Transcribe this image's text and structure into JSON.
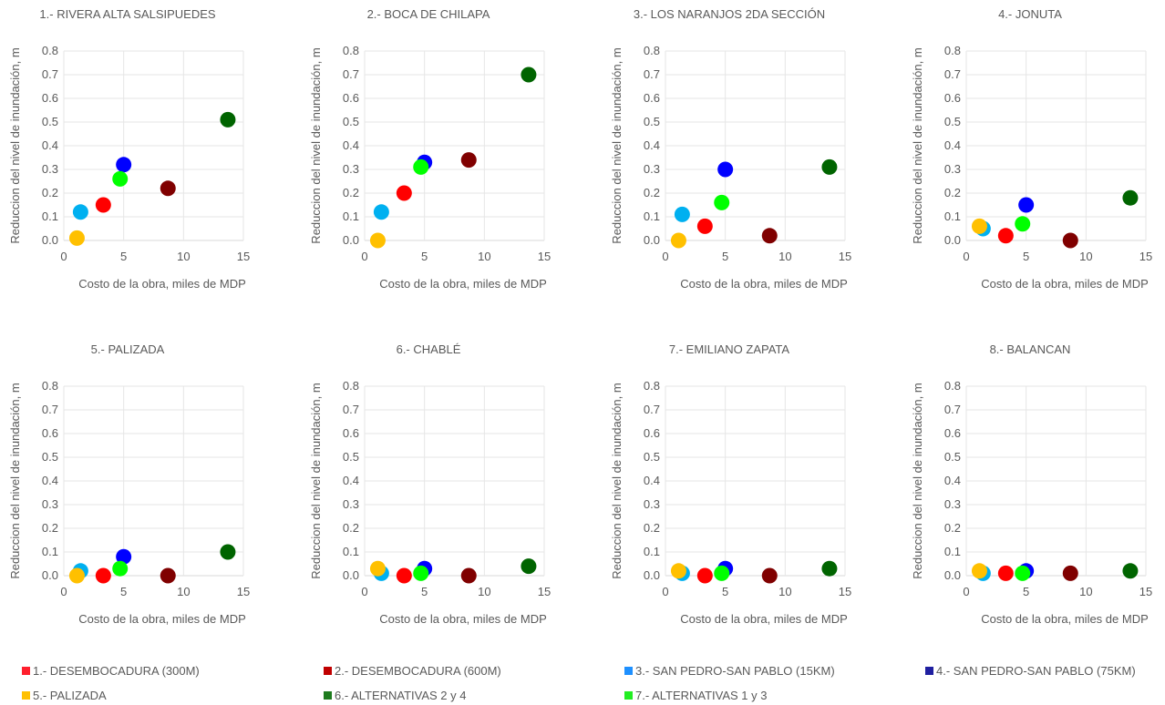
{
  "legend": [
    {
      "label": "1.- DESEMBOCADURA (300M)",
      "color": "#ff1f2d"
    },
    {
      "label": "2.- DESEMBOCADURA (600M)",
      "color": "#c00000"
    },
    {
      "label": "3.- SAN PEDRO-SAN PABLO (15KM)",
      "color": "#1e90ff"
    },
    {
      "label": "4.- SAN PEDRO-SAN PABLO (75KM)",
      "color": "#1f1fa0"
    },
    {
      "label": "5.- PALIZADA",
      "color": "#ffc000"
    },
    {
      "label": "6.- ALTERNATIVAS 2 y 4",
      "color": "#1e7b1e"
    },
    {
      "label": "7.- ALTERNATIVAS 1 y 3",
      "color": "#22ee22"
    }
  ],
  "chart_data": [
    {
      "type": "scatter",
      "title": "1.- RIVERA ALTA SALSIPUEDES",
      "xlabel": "Costo de la obra, miles de MDP",
      "ylabel": "Reduccion del nivel de inundación, m",
      "xlim": [
        0,
        15
      ],
      "ylim": [
        0,
        0.8
      ],
      "xticks": [
        "0",
        "5",
        "10",
        "15"
      ],
      "yticks": [
        "0.0",
        "0.1",
        "0.2",
        "0.3",
        "0.4",
        "0.5",
        "0.6",
        "0.7",
        "0.8"
      ],
      "points": [
        {
          "x": 1.1,
          "y": 0.01,
          "color": "#ffc000"
        },
        {
          "x": 1.4,
          "y": 0.12,
          "color": "#00b0f0"
        },
        {
          "x": 3.3,
          "y": 0.15,
          "color": "#ff0000"
        },
        {
          "x": 5.0,
          "y": 0.32,
          "color": "#0000ff"
        },
        {
          "x": 4.7,
          "y": 0.26,
          "color": "#00ff00"
        },
        {
          "x": 8.7,
          "y": 0.22,
          "color": "#800000"
        },
        {
          "x": 13.7,
          "y": 0.51,
          "color": "#006400"
        }
      ]
    },
    {
      "type": "scatter",
      "title": "2.- BOCA DE CHILAPA",
      "xlabel": "Costo de la obra, miles de MDP",
      "ylabel": "Reduccion del nivel de inundación, m",
      "xlim": [
        0,
        15
      ],
      "ylim": [
        0,
        0.8
      ],
      "xticks": [
        "0",
        "5",
        "10",
        "15"
      ],
      "yticks": [
        "0.0",
        "0.1",
        "0.2",
        "0.3",
        "0.4",
        "0.5",
        "0.6",
        "0.7",
        "0.8"
      ],
      "points": [
        {
          "x": 1.1,
          "y": 0.0,
          "color": "#ffc000"
        },
        {
          "x": 1.4,
          "y": 0.12,
          "color": "#00b0f0"
        },
        {
          "x": 3.3,
          "y": 0.2,
          "color": "#ff0000"
        },
        {
          "x": 5.0,
          "y": 0.33,
          "color": "#0000ff"
        },
        {
          "x": 4.7,
          "y": 0.31,
          "color": "#00ff00"
        },
        {
          "x": 8.7,
          "y": 0.34,
          "color": "#800000"
        },
        {
          "x": 13.7,
          "y": 0.7,
          "color": "#006400"
        }
      ]
    },
    {
      "type": "scatter",
      "title": "3.- LOS NARANJOS 2DA SECCIÓN",
      "xlabel": "Costo de la obra, miles de MDP",
      "ylabel": "Reduccion del nivel de inundación, m",
      "xlim": [
        0,
        15
      ],
      "ylim": [
        0,
        0.8
      ],
      "xticks": [
        "0",
        "5",
        "10",
        "15"
      ],
      "yticks": [
        "0.0",
        "0.1",
        "0.2",
        "0.3",
        "0.4",
        "0.5",
        "0.6",
        "0.7",
        "0.8"
      ],
      "points": [
        {
          "x": 1.1,
          "y": 0.0,
          "color": "#ffc000"
        },
        {
          "x": 1.4,
          "y": 0.11,
          "color": "#00b0f0"
        },
        {
          "x": 3.3,
          "y": 0.06,
          "color": "#ff0000"
        },
        {
          "x": 5.0,
          "y": 0.3,
          "color": "#0000ff"
        },
        {
          "x": 4.7,
          "y": 0.16,
          "color": "#00ff00"
        },
        {
          "x": 8.7,
          "y": 0.02,
          "color": "#800000"
        },
        {
          "x": 13.7,
          "y": 0.31,
          "color": "#006400"
        }
      ]
    },
    {
      "type": "scatter",
      "title": "4.- JONUTA",
      "xlabel": "Costo de la obra, miles de MDP",
      "ylabel": "Reduccion del nivel de inundación, m",
      "xlim": [
        0,
        15
      ],
      "ylim": [
        0,
        0.8
      ],
      "xticks": [
        "0",
        "5",
        "10",
        "15"
      ],
      "yticks": [
        "0.0",
        "0.1",
        "0.2",
        "0.3",
        "0.4",
        "0.5",
        "0.6",
        "0.7",
        "0.8"
      ],
      "points": [
        {
          "x": 1.4,
          "y": 0.05,
          "color": "#00b0f0"
        },
        {
          "x": 1.1,
          "y": 0.06,
          "color": "#ffc000"
        },
        {
          "x": 3.3,
          "y": 0.02,
          "color": "#ff0000"
        },
        {
          "x": 5.0,
          "y": 0.15,
          "color": "#0000ff"
        },
        {
          "x": 4.7,
          "y": 0.07,
          "color": "#00ff00"
        },
        {
          "x": 8.7,
          "y": 0.0,
          "color": "#800000"
        },
        {
          "x": 13.7,
          "y": 0.18,
          "color": "#006400"
        }
      ]
    },
    {
      "type": "scatter",
      "title": "5.- PALIZADA",
      "xlabel": "Costo de la obra, miles de MDP",
      "ylabel": "Reduccion del nivel de inundación, m",
      "xlim": [
        0,
        15
      ],
      "ylim": [
        0,
        0.8
      ],
      "xticks": [
        "0",
        "5",
        "10",
        "15"
      ],
      "yticks": [
        "0.0",
        "0.1",
        "0.2",
        "0.3",
        "0.4",
        "0.5",
        "0.6",
        "0.7",
        "0.8"
      ],
      "points": [
        {
          "x": 1.4,
          "y": 0.02,
          "color": "#00b0f0"
        },
        {
          "x": 1.1,
          "y": 0.0,
          "color": "#ffc000"
        },
        {
          "x": 3.3,
          "y": 0.0,
          "color": "#ff0000"
        },
        {
          "x": 5.0,
          "y": 0.08,
          "color": "#0000ff"
        },
        {
          "x": 4.7,
          "y": 0.03,
          "color": "#00ff00"
        },
        {
          "x": 8.7,
          "y": 0.0,
          "color": "#800000"
        },
        {
          "x": 13.7,
          "y": 0.1,
          "color": "#006400"
        }
      ]
    },
    {
      "type": "scatter",
      "title": "6.- CHABLÉ",
      "xlabel": "Costo de la obra, miles de MDP",
      "ylabel": "Reduccion del nivel de inundación, m",
      "xlim": [
        0,
        15
      ],
      "ylim": [
        0,
        0.8
      ],
      "xticks": [
        "0",
        "5",
        "10",
        "15"
      ],
      "yticks": [
        "0.0",
        "0.1",
        "0.2",
        "0.3",
        "0.4",
        "0.5",
        "0.6",
        "0.7",
        "0.8"
      ],
      "points": [
        {
          "x": 1.4,
          "y": 0.01,
          "color": "#00b0f0"
        },
        {
          "x": 1.1,
          "y": 0.03,
          "color": "#ffc000"
        },
        {
          "x": 3.3,
          "y": 0.0,
          "color": "#ff0000"
        },
        {
          "x": 5.0,
          "y": 0.03,
          "color": "#0000ff"
        },
        {
          "x": 4.7,
          "y": 0.01,
          "color": "#00ff00"
        },
        {
          "x": 8.7,
          "y": 0.0,
          "color": "#800000"
        },
        {
          "x": 13.7,
          "y": 0.04,
          "color": "#006400"
        }
      ]
    },
    {
      "type": "scatter",
      "title": "7.- EMILIANO ZAPATA",
      "xlabel": "Costo de la obra, miles de MDP",
      "ylabel": "Reduccion del nivel de inundación, m",
      "xlim": [
        0,
        15
      ],
      "ylim": [
        0,
        0.8
      ],
      "xticks": [
        "0",
        "5",
        "10",
        "15"
      ],
      "yticks": [
        "0.0",
        "0.1",
        "0.2",
        "0.3",
        "0.4",
        "0.5",
        "0.6",
        "0.7",
        "0.8"
      ],
      "points": [
        {
          "x": 1.4,
          "y": 0.01,
          "color": "#00b0f0"
        },
        {
          "x": 1.1,
          "y": 0.02,
          "color": "#ffc000"
        },
        {
          "x": 3.3,
          "y": 0.0,
          "color": "#ff0000"
        },
        {
          "x": 5.0,
          "y": 0.03,
          "color": "#0000ff"
        },
        {
          "x": 4.7,
          "y": 0.01,
          "color": "#00ff00"
        },
        {
          "x": 8.7,
          "y": 0.0,
          "color": "#800000"
        },
        {
          "x": 13.7,
          "y": 0.03,
          "color": "#006400"
        }
      ]
    },
    {
      "type": "scatter",
      "title": "8.- BALANCAN",
      "xlabel": "Costo de la obra, miles de MDP",
      "ylabel": "Reduccion del nivel de inundación, m",
      "xlim": [
        0,
        15
      ],
      "ylim": [
        0,
        0.8
      ],
      "xticks": [
        "0",
        "5",
        "10",
        "15"
      ],
      "yticks": [
        "0.0",
        "0.1",
        "0.2",
        "0.3",
        "0.4",
        "0.5",
        "0.6",
        "0.7",
        "0.8"
      ],
      "points": [
        {
          "x": 1.4,
          "y": 0.01,
          "color": "#00b0f0"
        },
        {
          "x": 1.1,
          "y": 0.02,
          "color": "#ffc000"
        },
        {
          "x": 3.3,
          "y": 0.01,
          "color": "#ff0000"
        },
        {
          "x": 5.0,
          "y": 0.02,
          "color": "#0000ff"
        },
        {
          "x": 4.7,
          "y": 0.01,
          "color": "#00ff00"
        },
        {
          "x": 8.7,
          "y": 0.01,
          "color": "#800000"
        },
        {
          "x": 13.7,
          "y": 0.02,
          "color": "#006400"
        }
      ]
    }
  ]
}
